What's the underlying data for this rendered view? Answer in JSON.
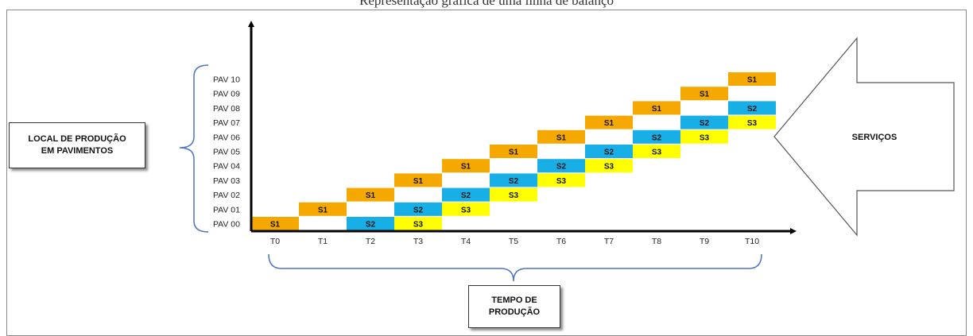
{
  "caption": "Representação gráfica de uma linha de balanço",
  "left_box": {
    "line1": "LOCAL DE PRODUÇÃO",
    "line2": "EM PAVIMENTOS"
  },
  "bottom_box": {
    "line1": "TEMPO DE",
    "line2": "PRODUÇÃO"
  },
  "arrow_label": "SERVIÇOS",
  "colors": {
    "S1": "#f5a800",
    "S2": "#18aee6",
    "S3": "#ffff00",
    "axis": "#000000",
    "brace": "#4a74c4"
  },
  "chart_data": {
    "type": "line-of-balance",
    "x_ticks": [
      "T0",
      "T1",
      "T2",
      "T3",
      "T4",
      "T5",
      "T6",
      "T7",
      "T8",
      "T9",
      "T10"
    ],
    "y_ticks": [
      "PAV 00",
      "PAV 01",
      "PAV 02",
      "PAV 03",
      "PAV 04",
      "PAV 05",
      "PAV 06",
      "PAV 07",
      "PAV 08",
      "PAV 09",
      "PAV 10"
    ],
    "series": [
      {
        "name": "S1",
        "cells": [
          [
            0,
            0
          ],
          [
            1,
            1
          ],
          [
            2,
            2
          ],
          [
            3,
            3
          ],
          [
            4,
            4
          ],
          [
            5,
            5
          ],
          [
            6,
            6
          ],
          [
            7,
            7
          ],
          [
            8,
            8
          ],
          [
            9,
            9
          ],
          [
            10,
            10
          ]
        ]
      },
      {
        "name": "S2",
        "cells": [
          [
            2,
            0
          ],
          [
            3,
            1
          ],
          [
            4,
            2
          ],
          [
            5,
            3
          ],
          [
            6,
            4
          ],
          [
            7,
            5
          ],
          [
            8,
            6
          ],
          [
            9,
            7
          ],
          [
            10,
            8
          ]
        ]
      },
      {
        "name": "S3",
        "cells": [
          [
            3,
            0
          ],
          [
            4,
            1
          ],
          [
            5,
            2
          ],
          [
            6,
            3
          ],
          [
            7,
            4
          ],
          [
            8,
            5
          ],
          [
            9,
            6
          ],
          [
            10,
            7
          ]
        ]
      }
    ]
  }
}
